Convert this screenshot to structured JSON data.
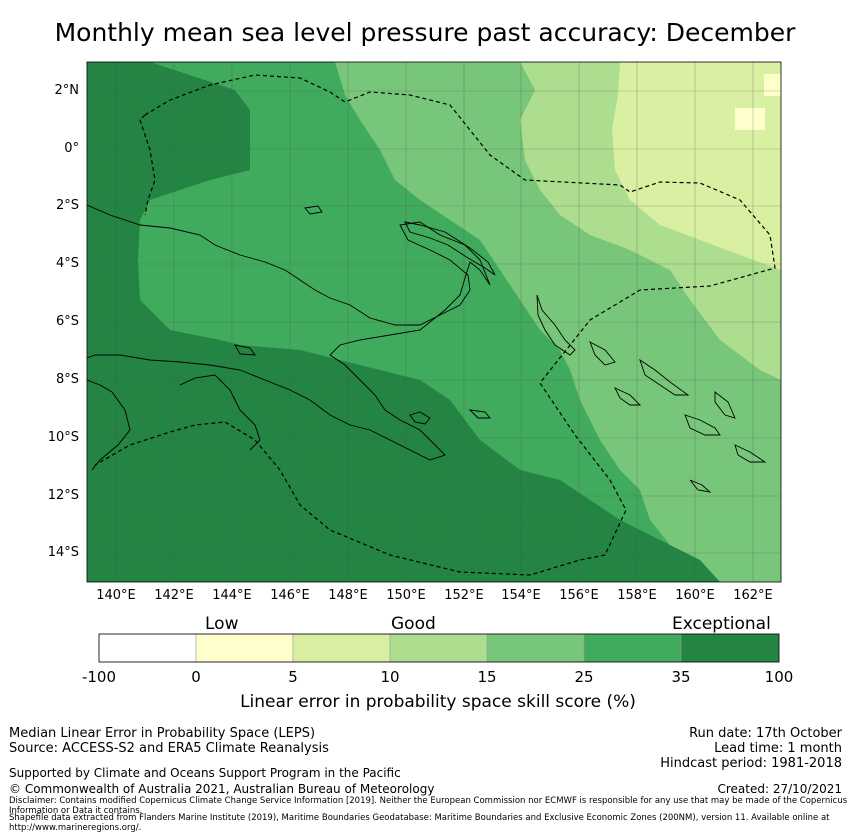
{
  "title": "Monthly mean sea level pressure past accuracy: December",
  "map": {
    "lat_labels": [
      "2°N",
      "0°",
      "2°S",
      "4°S",
      "6°S",
      "8°S",
      "10°S",
      "12°S",
      "14°S"
    ],
    "lon_labels": [
      "140°E",
      "142°E",
      "144°E",
      "146°E",
      "148°E",
      "150°E",
      "152°E",
      "154°E",
      "156°E",
      "158°E",
      "160°E",
      "162°E"
    ],
    "extent": {
      "lon_min": 139.0,
      "lon_max": 163.2,
      "lat_min": -15.0,
      "lat_max": 3.0
    }
  },
  "colorbar": {
    "categories": [
      "Low",
      "Good",
      "Exceptional"
    ],
    "ticks": [
      "-100",
      "0",
      "5",
      "10",
      "15",
      "25",
      "35",
      "100"
    ],
    "colors": [
      "#ffffff",
      "#ffffcc",
      "#d9f0a3",
      "#addd8e",
      "#78c679",
      "#41ab5d",
      "#238443"
    ],
    "label": "Linear error in probability space skill score (%)"
  },
  "footer": {
    "left_line1": "Median Linear Error in Probability Space (LEPS)",
    "left_line2": "Source: ACCESS-S2 and ERA5 Climate Reanalysis",
    "supported": "Supported by Climate and Oceans Support Program in the Pacific",
    "copyright": "© Commonwealth of Australia 2021, Australian Bureau of Meteorology",
    "run_date": "Run date: 17th October",
    "lead_time": "Lead time: 1 month",
    "hindcast": "Hindcast period: 1981-2018",
    "created": "Created: 27/10/2021",
    "disclaimer": "Disclaimer: Contains modified Copernicus Climate Change Service Information [2019]. Neither the European Commission nor ECMWF is responsible for any use that may be made of the Copernicus Information or Data it contains.",
    "shapefile": "Shapefile data extracted from Flanders Marine Institute (2019), Maritime Boundaries Geodatabase: Maritime Boundaries and Exclusive Economic Zones (200NM), version 11. Available online at http://www.marineregions.org/."
  }
}
